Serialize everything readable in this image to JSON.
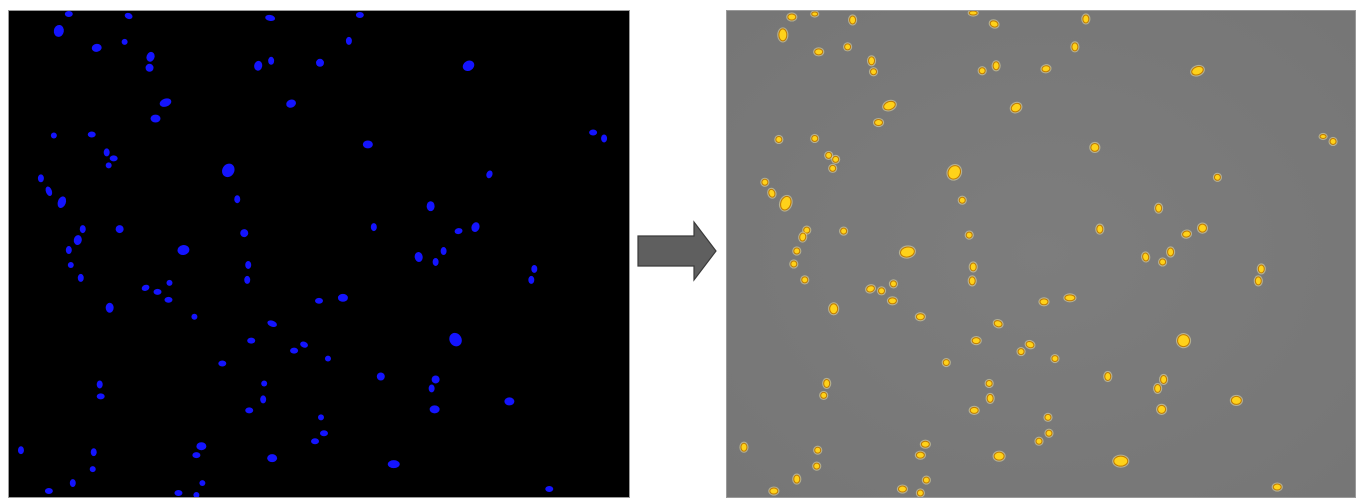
{
  "figure": {
    "left_panel": {
      "image": "fluorescence-microscopy-nuclei",
      "background_color": "#000000",
      "cell_color": "#1414ff"
    },
    "arrow": {
      "icon": "right-arrow-icon",
      "fill_color": "#5f5f5f",
      "stroke_color": "#3a3a3a"
    },
    "right_panel": {
      "image": "segmentation-overlay",
      "background_color": "#7a7a7a",
      "cell_fill_color": "#ffd21a",
      "cell_outline_color": "#c07a00",
      "cell_highlight_color": "#fff6b0"
    }
  }
}
